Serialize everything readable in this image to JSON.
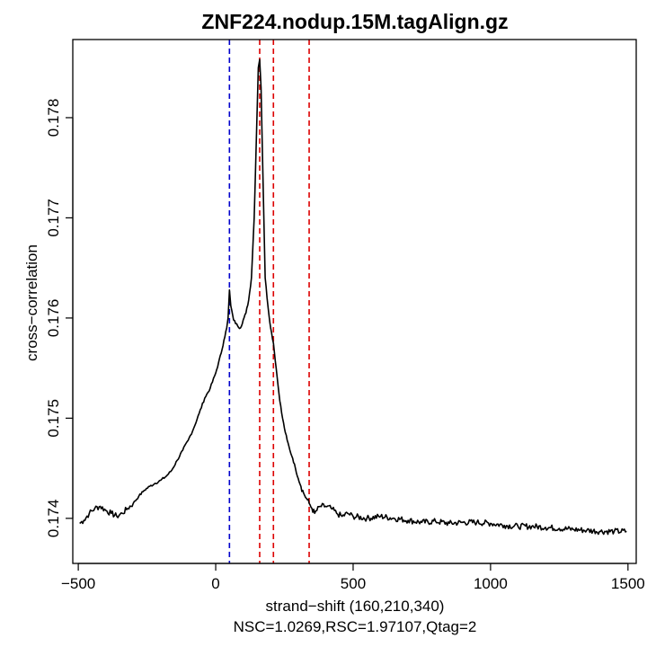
{
  "chart_data": {
    "type": "line",
    "title": "ZNF224.nodup.15M.tagAlign.gz",
    "xlabel": "strand−shift (160,210,340)",
    "subtitle": "NSC=1.0269,RSC=1.97107,Qtag=2",
    "ylabel": "cross−correlation",
    "xlim": [
      -520,
      1530
    ],
    "ylim": [
      0.17355,
      0.17878
    ],
    "x_ticks": [
      -500,
      0,
      500,
      1000,
      1500
    ],
    "x_tick_labels": [
      "−500",
      "0",
      "500",
      "1000",
      "1500"
    ],
    "y_ticks": [
      0.174,
      0.175,
      0.176,
      0.177,
      0.178
    ],
    "y_tick_labels": [
      "0.174",
      "0.175",
      "0.176",
      "0.177",
      "0.178"
    ],
    "vlines": [
      {
        "x": 50,
        "color": "#0000cc",
        "style": "dashed"
      },
      {
        "x": 160,
        "color": "#dd0000",
        "style": "dashed"
      },
      {
        "x": 210,
        "color": "#dd0000",
        "style": "dashed"
      },
      {
        "x": 340,
        "color": "#dd0000",
        "style": "dashed"
      }
    ],
    "series": [
      {
        "color": "#000000",
        "points": [
          [
            -495,
            0.17395
          ],
          [
            -480,
            0.17398
          ],
          [
            -460,
            0.17405
          ],
          [
            -440,
            0.1741
          ],
          [
            -420,
            0.17412
          ],
          [
            -400,
            0.17408
          ],
          [
            -380,
            0.17405
          ],
          [
            -360,
            0.17402
          ],
          [
            -340,
            0.17405
          ],
          [
            -320,
            0.1741
          ],
          [
            -300,
            0.17415
          ],
          [
            -280,
            0.17422
          ],
          [
            -260,
            0.17428
          ],
          [
            -240,
            0.17432
          ],
          [
            -220,
            0.17435
          ],
          [
            -200,
            0.17438
          ],
          [
            -180,
            0.17442
          ],
          [
            -160,
            0.17448
          ],
          [
            -140,
            0.17458
          ],
          [
            -120,
            0.17468
          ],
          [
            -100,
            0.17478
          ],
          [
            -80,
            0.1749
          ],
          [
            -60,
            0.17505
          ],
          [
            -40,
            0.1752
          ],
          [
            -20,
            0.1753
          ],
          [
            0,
            0.17545
          ],
          [
            10,
            0.17555
          ],
          [
            20,
            0.17565
          ],
          [
            30,
            0.17578
          ],
          [
            40,
            0.1759
          ],
          [
            45,
            0.176
          ],
          [
            50,
            0.17628
          ],
          [
            55,
            0.17612
          ],
          [
            65,
            0.17598
          ],
          [
            80,
            0.17592
          ],
          [
            90,
            0.1759
          ],
          [
            100,
            0.17598
          ],
          [
            110,
            0.17605
          ],
          [
            120,
            0.17618
          ],
          [
            130,
            0.1764
          ],
          [
            140,
            0.177
          ],
          [
            148,
            0.1778
          ],
          [
            155,
            0.1785
          ],
          [
            160,
            0.17858
          ],
          [
            165,
            0.1783
          ],
          [
            172,
            0.1774
          ],
          [
            180,
            0.1764
          ],
          [
            190,
            0.17612
          ],
          [
            200,
            0.1759
          ],
          [
            210,
            0.17575
          ],
          [
            220,
            0.1755
          ],
          [
            230,
            0.17525
          ],
          [
            240,
            0.17505
          ],
          [
            250,
            0.1749
          ],
          [
            260,
            0.17478
          ],
          [
            270,
            0.17468
          ],
          [
            280,
            0.1746
          ],
          [
            290,
            0.1745
          ],
          [
            300,
            0.1744
          ],
          [
            310,
            0.17432
          ],
          [
            320,
            0.17425
          ],
          [
            330,
            0.1742
          ],
          [
            340,
            0.17415
          ],
          [
            350,
            0.1741
          ],
          [
            360,
            0.17405
          ],
          [
            380,
            0.17412
          ],
          [
            400,
            0.17412
          ],
          [
            420,
            0.1741
          ],
          [
            440,
            0.17405
          ],
          [
            460,
            0.17402
          ],
          [
            480,
            0.17405
          ],
          [
            500,
            0.17402
          ],
          [
            550,
            0.174
          ],
          [
            600,
            0.17402
          ],
          [
            650,
            0.174
          ],
          [
            700,
            0.17398
          ],
          [
            750,
            0.17396
          ],
          [
            800,
            0.17397
          ],
          [
            850,
            0.17395
          ],
          [
            900,
            0.17396
          ],
          [
            950,
            0.17396
          ],
          [
            1000,
            0.17395
          ],
          [
            1050,
            0.17393
          ],
          [
            1100,
            0.17392
          ],
          [
            1150,
            0.17392
          ],
          [
            1200,
            0.17391
          ],
          [
            1250,
            0.1739
          ],
          [
            1300,
            0.17389
          ],
          [
            1350,
            0.17388
          ],
          [
            1400,
            0.17387
          ],
          [
            1450,
            0.17387
          ],
          [
            1495,
            0.17387
          ]
        ]
      }
    ]
  }
}
